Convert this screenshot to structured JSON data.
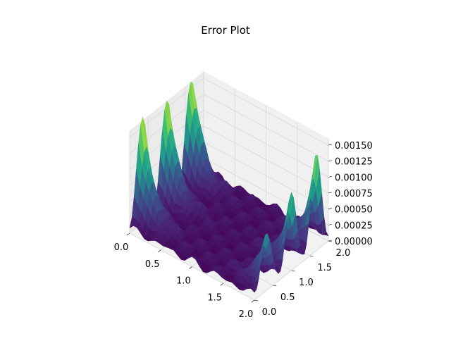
{
  "chart_data": {
    "type": "surface",
    "title": "Error Plot",
    "xlabel": "",
    "ylabel": "",
    "zlabel": "",
    "xlim": [
      0,
      2
    ],
    "ylim": [
      0,
      2
    ],
    "zlim": [
      0,
      0.0016
    ],
    "x_ticks": [
      "0.0",
      "0.5",
      "1.0",
      "1.5",
      "2.0"
    ],
    "y_ticks": [
      "0.0",
      "0.5",
      "1.0",
      "1.5",
      "2.0"
    ],
    "z_ticks": [
      "0.00000",
      "0.00025",
      "0.00050",
      "0.00075",
      "0.00100",
      "0.00125",
      "0.00150"
    ],
    "colormap": "viridis",
    "grid": true,
    "description_values": {
      "peak_error_approx": 0.0016,
      "interior_error_approx": 0.0001
    }
  }
}
